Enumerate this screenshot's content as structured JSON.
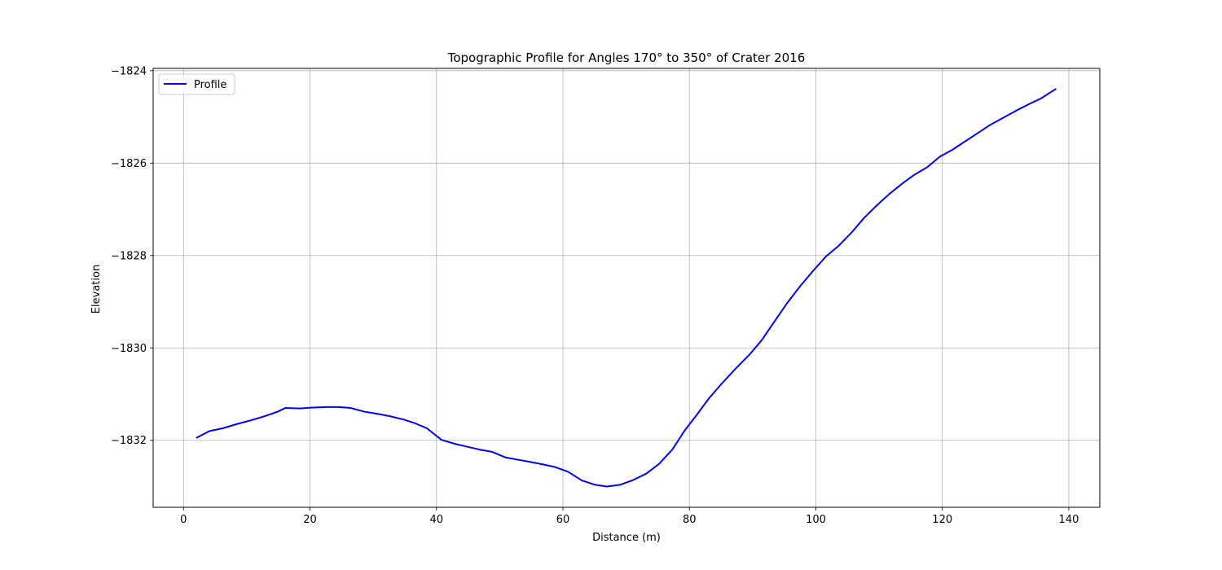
{
  "chart_data": {
    "type": "line",
    "title": "Topographic Profile for Angles 170° to 350° of Crater 2016",
    "xlabel": "Distance (m)",
    "ylabel": "Elevation",
    "xlim": [
      -4.8,
      144.9
    ],
    "ylim": [
      -1833.45,
      -1823.95
    ],
    "xticks": [
      0,
      20,
      40,
      60,
      80,
      100,
      120,
      140
    ],
    "xtick_labels": [
      "0",
      "20",
      "40",
      "60",
      "80",
      "100",
      "120",
      "140"
    ],
    "yticks": [
      -1824,
      -1826,
      -1828,
      -1830,
      -1832
    ],
    "ytick_labels": [
      "−1824",
      "−1826",
      "−1828",
      "−1830",
      "−1832"
    ],
    "grid": true,
    "legend_position": "upper-left",
    "series": [
      {
        "name": "Profile",
        "color": "#0000ff",
        "x": [
          2.0,
          4.1,
          6.2,
          8.4,
          10.6,
          12.8,
          14.9,
          16.1,
          18.4,
          20.5,
          22.6,
          24.6,
          26.4,
          28.6,
          30.8,
          32.7,
          34.8,
          36.6,
          38.5,
          40.8,
          43.0,
          44.9,
          46.8,
          48.8,
          50.9,
          52.9,
          54.9,
          56.8,
          58.8,
          60.8,
          63.0,
          65.0,
          67.0,
          69.1,
          71.1,
          73.2,
          75.2,
          77.3,
          79.3,
          81.1,
          83.1,
          85.2,
          87.3,
          89.4,
          91.4,
          93.3,
          95.4,
          97.6,
          99.7,
          101.6,
          103.6,
          105.6,
          107.6,
          109.6,
          111.6,
          113.6,
          115.6,
          117.6,
          119.6,
          121.6,
          123.6,
          125.6,
          127.6,
          129.6,
          131.6,
          133.6,
          135.6,
          138.0
        ],
        "y": [
          -1831.95,
          -1831.8,
          -1831.74,
          -1831.65,
          -1831.57,
          -1831.48,
          -1831.38,
          -1831.3,
          -1831.31,
          -1831.29,
          -1831.28,
          -1831.28,
          -1831.3,
          -1831.38,
          -1831.43,
          -1831.48,
          -1831.55,
          -1831.63,
          -1831.74,
          -1831.99,
          -1832.08,
          -1832.14,
          -1832.2,
          -1832.25,
          -1832.37,
          -1832.42,
          -1832.47,
          -1832.52,
          -1832.58,
          -1832.68,
          -1832.87,
          -1832.96,
          -1833.0,
          -1832.96,
          -1832.86,
          -1832.72,
          -1832.51,
          -1832.2,
          -1831.78,
          -1831.46,
          -1831.09,
          -1830.76,
          -1830.45,
          -1830.16,
          -1829.84,
          -1829.46,
          -1829.04,
          -1828.65,
          -1828.31,
          -1828.02,
          -1827.79,
          -1827.51,
          -1827.19,
          -1826.92,
          -1826.67,
          -1826.45,
          -1826.25,
          -1826.09,
          -1825.86,
          -1825.71,
          -1825.53,
          -1825.35,
          -1825.17,
          -1825.02,
          -1824.87,
          -1824.73,
          -1824.6,
          -1824.39
        ]
      }
    ]
  }
}
